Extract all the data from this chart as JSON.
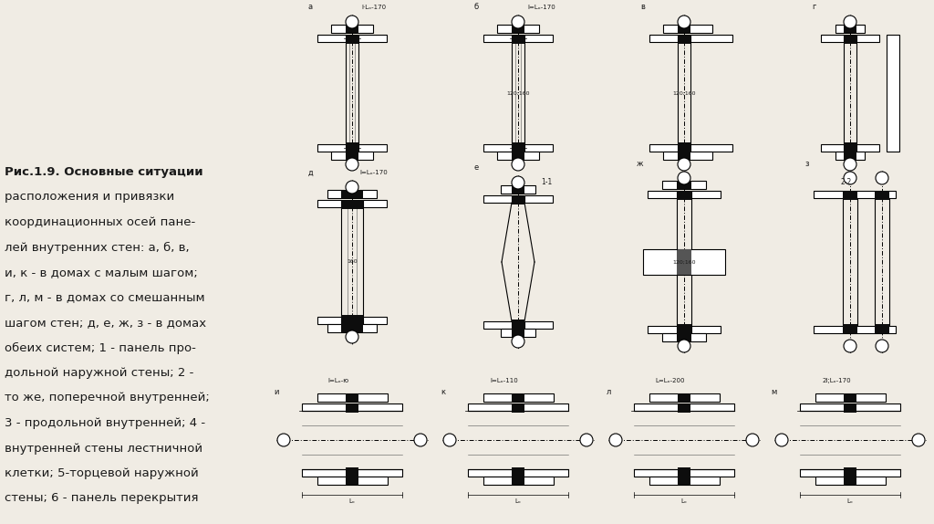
{
  "bg": "#f0ece4",
  "fg": "#1a1a1a",
  "fig_w": 10.24,
  "fig_h": 5.74,
  "caption": [
    "Рис.1.9. Основные ситуации",
    "расположения и привязки",
    "координационных осей пане-",
    "лей внутренних стен: а, б, в,",
    "и, к - в домах с малым шагом;",
    "г, л, м - в домах со смешанным",
    "шагом стен; д, е, ж, з - в домах",
    "обеих систем; 1 - панель про-",
    "дольной наружной стены; 2 -",
    "то же, поперечной внутренней;",
    "3 - продольной внутренней; 4 -",
    "внутренней стены лестничной",
    "клетки; 5-торцевой наружной",
    "стены; 6 - панель перекрытия"
  ]
}
